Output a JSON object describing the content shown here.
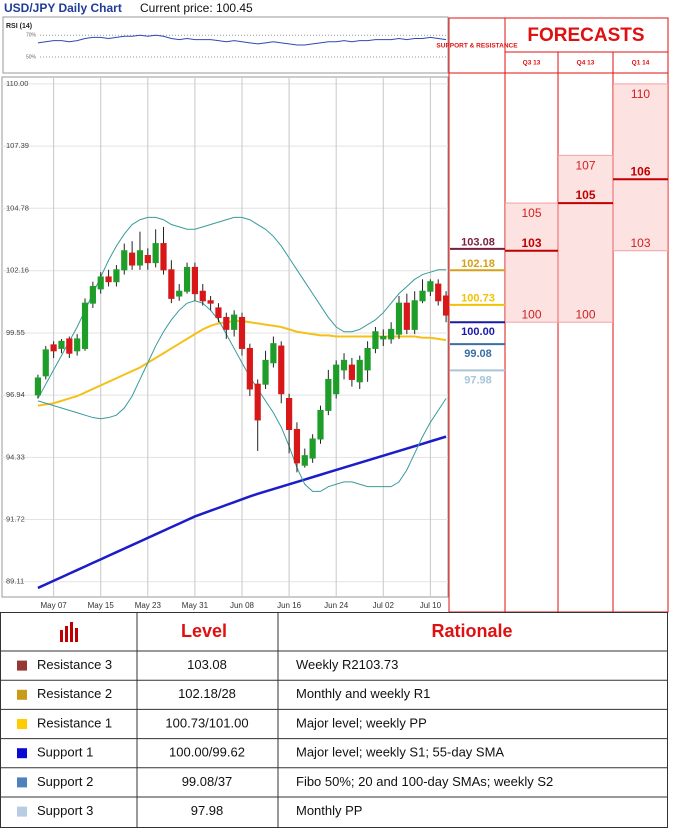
{
  "chart_data": [
    {
      "type": "candlestick",
      "title": "USD/JPY Daily Chart",
      "subtitle": "Current price: 100.45",
      "categories": [
        null,
        null,
        "May 07",
        null,
        null,
        null,
        null,
        null,
        "May 15",
        null,
        null,
        null,
        null,
        null,
        "May 23",
        null,
        null,
        null,
        null,
        null,
        "May 31",
        null,
        null,
        null,
        null,
        null,
        "Jun 08",
        null,
        null,
        null,
        null,
        null,
        "Jun 16",
        null,
        null,
        null,
        null,
        null,
        "Jun 24",
        null,
        null,
        null,
        null,
        null,
        "Jul 02",
        null,
        null,
        null,
        null,
        null,
        "Jul 10",
        null,
        null
      ],
      "open": [
        96.95,
        97.75,
        99.05,
        98.9,
        99.3,
        98.8,
        98.9,
        100.8,
        101.4,
        101.9,
        101.7,
        102.2,
        102.9,
        102.4,
        102.8,
        102.5,
        103.3,
        102.2,
        101.1,
        101.3,
        102.3,
        101.3,
        100.9,
        100.6,
        100.2,
        99.7,
        100.2,
        98.9,
        97.4,
        97.4,
        98.3,
        99.0,
        96.8,
        95.5,
        94.0,
        94.3,
        95.1,
        96.3,
        97.0,
        98.0,
        98.2,
        97.5,
        98.0,
        98.9,
        99.3,
        99.3,
        99.5,
        100.8,
        99.7,
        100.9,
        101.3,
        101.6,
        101.1
      ],
      "high": [
        97.8,
        99.0,
        99.2,
        99.3,
        99.4,
        99.5,
        101.0,
        101.7,
        102.1,
        102.2,
        102.4,
        103.3,
        103.4,
        103.8,
        103.1,
        103.9,
        104.0,
        102.6,
        101.6,
        102.5,
        102.5,
        101.6,
        101.1,
        100.8,
        100.4,
        100.5,
        100.4,
        99.1,
        97.6,
        98.8,
        99.4,
        99.2,
        97.0,
        95.8,
        94.7,
        95.3,
        96.5,
        98.0,
        98.4,
        98.7,
        98.5,
        98.6,
        99.2,
        99.8,
        99.7,
        100.0,
        101.1,
        101.2,
        101.3,
        101.8,
        101.8,
        101.8,
        101.3
      ],
      "low": [
        96.8,
        97.6,
        98.5,
        98.7,
        98.5,
        98.6,
        98.8,
        100.6,
        101.2,
        101.5,
        101.5,
        102.0,
        102.2,
        102.2,
        102.2,
        102.3,
        102.0,
        100.8,
        100.9,
        101.2,
        100.9,
        100.7,
        100.5,
        100.0,
        99.3,
        99.4,
        98.6,
        96.9,
        94.6,
        97.2,
        98.1,
        96.6,
        94.5,
        93.7,
        93.9,
        94.1,
        94.9,
        96.1,
        96.8,
        97.6,
        97.3,
        97.2,
        97.5,
        98.7,
        99.0,
        99.1,
        99.3,
        99.5,
        99.5,
        100.8,
        101.1,
        100.7,
        100.0
      ],
      "close": [
        97.66,
        98.84,
        98.8,
        99.2,
        98.7,
        99.3,
        100.8,
        101.5,
        101.9,
        101.7,
        102.2,
        103.0,
        102.4,
        103.0,
        102.5,
        103.3,
        102.2,
        101.0,
        101.3,
        102.3,
        101.2,
        100.9,
        100.8,
        100.2,
        99.7,
        100.3,
        98.9,
        97.2,
        95.9,
        98.4,
        99.1,
        97.0,
        95.5,
        94.1,
        94.4,
        95.1,
        96.3,
        97.6,
        98.2,
        98.4,
        97.6,
        98.4,
        98.9,
        99.6,
        99.4,
        99.7,
        100.8,
        99.7,
        100.9,
        101.3,
        101.7,
        100.9,
        100.3
      ],
      "up_color": "#1e9e28",
      "down_color": "#d81818",
      "series": [
        {
          "color": "#f5c01a",
          "values": [
            96.5,
            96.55,
            96.6,
            96.7,
            96.8,
            96.9,
            97.05,
            97.2,
            97.35,
            97.5,
            97.65,
            97.8,
            97.95,
            98.1,
            98.3,
            98.5,
            98.7,
            98.9,
            99.1,
            99.3,
            99.5,
            99.7,
            99.85,
            99.95,
            100.0,
            100.05,
            100.05,
            100.0,
            99.95,
            99.9,
            99.85,
            99.8,
            99.7,
            99.6,
            99.55,
            99.5,
            99.45,
            99.45,
            99.4,
            99.4,
            99.4,
            99.4,
            99.4,
            99.4,
            99.4,
            99.4,
            99.4,
            99.4,
            99.4,
            99.35,
            99.35,
            99.3,
            99.25
          ]
        },
        {
          "color": "#1c1cc8",
          "values": [
            88.85,
            89.0,
            89.15,
            89.3,
            89.45,
            89.6,
            89.75,
            89.9,
            90.05,
            90.2,
            90.35,
            90.5,
            90.65,
            90.8,
            90.95,
            91.1,
            91.25,
            91.4,
            91.55,
            91.7,
            91.85,
            91.97,
            92.09,
            92.21,
            92.33,
            92.45,
            92.57,
            92.69,
            92.8,
            92.9,
            93.0,
            93.1,
            93.2,
            93.3,
            93.4,
            93.5,
            93.6,
            93.7,
            93.8,
            93.9,
            94.0,
            94.1,
            94.2,
            94.3,
            94.4,
            94.5,
            94.6,
            94.7,
            94.8,
            94.9,
            95.0,
            95.1,
            95.2
          ]
        },
        {
          "color": "#3a9a9a",
          "values": [
            96.8,
            97.4,
            98.0,
            98.6,
            99.2,
            99.8,
            100.5,
            101.2,
            101.9,
            102.6,
            103.2,
            103.7,
            104.1,
            104.3,
            104.4,
            104.4,
            104.3,
            104.1,
            104.0,
            103.9,
            103.9,
            104.0,
            104.1,
            104.2,
            104.3,
            104.4,
            104.4,
            104.3,
            104.1,
            103.9,
            103.6,
            103.2,
            102.7,
            102.2,
            101.7,
            101.2,
            100.7,
            100.2,
            99.8,
            99.6,
            99.6,
            99.7,
            99.9,
            100.1,
            100.4,
            100.8,
            101.2,
            101.5,
            101.8,
            102.0,
            102.1,
            102.2,
            102.2
          ]
        },
        {
          "color": "#3a9a9a",
          "values": [
            96.7,
            96.6,
            96.5,
            96.4,
            96.3,
            96.2,
            96.1,
            96.0,
            95.95,
            96.0,
            96.1,
            96.4,
            96.9,
            97.6,
            98.3,
            99.0,
            99.6,
            100.1,
            100.5,
            100.8,
            100.9,
            100.8,
            100.5,
            100.1,
            99.5,
            98.9,
            98.3,
            97.7,
            97.2,
            96.7,
            96.2,
            95.6,
            94.8,
            93.9,
            93.2,
            92.9,
            92.9,
            93.1,
            93.2,
            93.3,
            93.3,
            93.2,
            93.1,
            93.1,
            93.1,
            93.1,
            93.3,
            93.8,
            94.5,
            95.2,
            95.8,
            96.3,
            96.8
          ]
        }
      ],
      "ylim": [
        88.47,
        110.29
      ],
      "yticks": [
        {
          "value": 110,
          "label": "110.00"
        },
        107.39,
        104.78,
        102.16,
        99.55,
        96.94,
        94.33,
        91.72,
        89.11
      ],
      "grid": true
    },
    {
      "type": "line",
      "title": "RSI (14)",
      "color": "#3346b8",
      "values": [
        63,
        64,
        65,
        65,
        64,
        65,
        67,
        68,
        68,
        67,
        68,
        69,
        69,
        70,
        69,
        70,
        69,
        67,
        66,
        67,
        66,
        66,
        66,
        65,
        64,
        65,
        64,
        63,
        62,
        63,
        64,
        63,
        62,
        61,
        61,
        62,
        63,
        64,
        64,
        65,
        64,
        65,
        65,
        66,
        66,
        66,
        67,
        66,
        67,
        67,
        68,
        67,
        66
      ],
      "ylim": [
        38,
        84
      ],
      "yticks": [
        {
          "value": 50,
          "label": "50%"
        },
        {
          "value": 70,
          "label": "70%"
        }
      ]
    }
  ],
  "support_resistance": {
    "title": "SUPPORT & RESISTANCE",
    "values": [
      103.08,
      102.18,
      100.73,
      100,
      99.08,
      97.98
    ],
    "value_labels": [
      "103.08",
      "102.18",
      "100.73",
      "100.00",
      "99.08",
      "97.98"
    ],
    "colors": [
      "#7a1f3d",
      "#d4a017",
      "#f2c200",
      "#1a1aa6",
      "#3a6ea5",
      "#a9c5d9"
    ]
  },
  "forecasts": {
    "title": "FORECASTS",
    "periods": [
      {
        "name": "Q3 13",
        "high": 105,
        "mid": 103,
        "low": 100
      },
      {
        "name": "Q4 13",
        "high": 107,
        "mid": 105,
        "low": 100
      },
      {
        "name": "Q1 14",
        "high": 110,
        "mid": 106,
        "low": 103
      }
    ]
  },
  "table": {
    "header": [
      "Level",
      "Rationale"
    ],
    "rows": [
      {
        "name": "Resistance 3",
        "color": "#953735",
        "level": "103.08",
        "rationale": "Weekly R2103.73"
      },
      {
        "name": "Resistance 2",
        "color": "#cc9a1a",
        "level": "102.18/28",
        "rationale": "Monthly and weekly R1"
      },
      {
        "name": "Resistance 1",
        "color": "#ffcc00",
        "level": "100.73/101.00",
        "rationale": "Major level; weekly PP"
      },
      {
        "name": "Support 1",
        "color": "#0a0ad0",
        "level": "100.00/99.62",
        "rationale": "Major level; weekly S1; 55-day SMA"
      },
      {
        "name": "Support 2",
        "color": "#4f81bd",
        "level": "99.08/37",
        "rationale": "Fibo 50%; 20 and 100-day SMAs; weekly S2"
      },
      {
        "name": "Support 3",
        "color": "#b8cce4",
        "level": "97.98",
        "rationale": "Monthly PP"
      }
    ]
  }
}
